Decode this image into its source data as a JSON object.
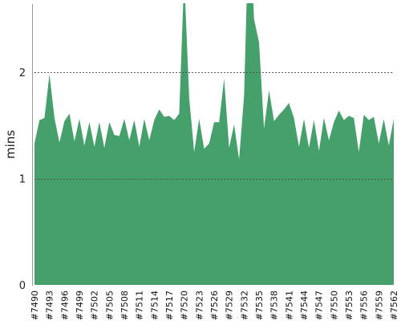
{
  "chart_data": {
    "type": "area",
    "title": "",
    "xlabel": "",
    "ylabel": "mins",
    "ylim": [
      0,
      2.65
    ],
    "yticks": [
      0,
      1,
      2
    ],
    "grid": "y-dashed at 1 and 2",
    "legend": "none",
    "color": "#46a06b",
    "x_start": 7490,
    "x_end": 7562,
    "tick_labels": [
      "#7490",
      "#7493",
      "#7496",
      "#7499",
      "#7502",
      "#7505",
      "#7508",
      "#7511",
      "#7514",
      "#7517",
      "#7520",
      "#7523",
      "#7526",
      "#7529",
      "#7532",
      "#7535",
      "#7538",
      "#7541",
      "#7544",
      "#7547",
      "#7550",
      "#7553",
      "#7556",
      "#7559",
      "#7562"
    ],
    "values": [
      1.33,
      1.55,
      1.57,
      1.98,
      1.57,
      1.34,
      1.54,
      1.61,
      1.35,
      1.56,
      1.31,
      1.53,
      1.3,
      1.53,
      1.29,
      1.53,
      1.41,
      1.4,
      1.56,
      1.36,
      1.55,
      1.3,
      1.56,
      1.36,
      1.55,
      1.65,
      1.58,
      1.59,
      1.55,
      1.61,
      2.9,
      1.76,
      1.25,
      1.56,
      1.28,
      1.33,
      1.53,
      1.53,
      1.94,
      1.29,
      1.51,
      1.18,
      1.78,
      3.5,
      2.5,
      2.28,
      1.47,
      1.83,
      1.54,
      1.6,
      1.65,
      1.71,
      1.57,
      1.3,
      1.56,
      1.29,
      1.55,
      1.26,
      1.57,
      1.36,
      1.53,
      1.64,
      1.55,
      1.59,
      1.57,
      1.25,
      1.6,
      1.55,
      1.58,
      1.33,
      1.56,
      1.31,
      1.56
    ]
  }
}
